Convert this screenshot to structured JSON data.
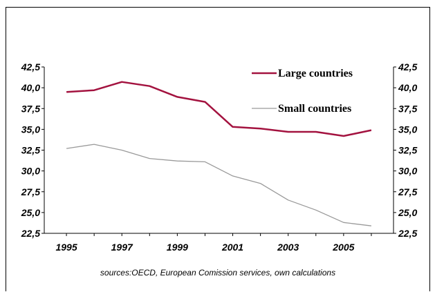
{
  "chart_data": {
    "type": "line",
    "x": [
      1995,
      1996,
      1997,
      1998,
      1999,
      2000,
      2001,
      2002,
      2003,
      2004,
      2005,
      2006
    ],
    "xticks": [
      "1995",
      "1997",
      "1999",
      "2001",
      "2003",
      "2005"
    ],
    "yticks": [
      "42,5",
      "40,0",
      "37,5",
      "35,0",
      "32,5",
      "30,0",
      "27,5",
      "25,0",
      "22,5"
    ],
    "ylim": [
      22.5,
      42.5
    ],
    "series": [
      {
        "name": "Large countries",
        "color": "#a3123f",
        "values": [
          39.5,
          39.7,
          40.7,
          40.2,
          38.9,
          38.3,
          35.3,
          35.1,
          34.7,
          34.7,
          34.2,
          34.9
        ]
      },
      {
        "name": "Small countries",
        "color": "#999999",
        "values": [
          32.7,
          33.2,
          32.5,
          31.5,
          31.2,
          31.1,
          29.4,
          28.5,
          26.5,
          25.3,
          23.8,
          23.4
        ]
      }
    ],
    "legend_position": "top-right",
    "source": "sources:OECD, European Comission services, own calculations"
  }
}
